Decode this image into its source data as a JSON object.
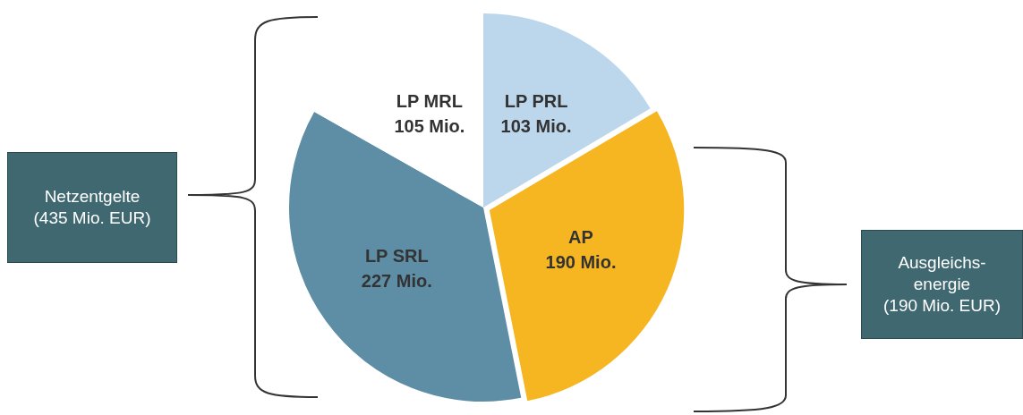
{
  "chart_data": {
    "type": "pie",
    "categories": [
      "LP PRL",
      "AP",
      "LP SRL",
      "LP MRL"
    ],
    "values": [
      103,
      190,
      227,
      105
    ],
    "colors": [
      "#bcd7ec",
      "#f6b622",
      "#5d8ea5",
      "#ffffff"
    ],
    "value_labels": [
      "103 Mio.",
      "190 Mio.",
      "227 Mio.",
      "105 Mio."
    ],
    "annotations": [
      "Netzentgelte\n(435 Mio. EUR)",
      "Ausgleichs-\nenergie\n(190 Mio. EUR)"
    ]
  }
}
